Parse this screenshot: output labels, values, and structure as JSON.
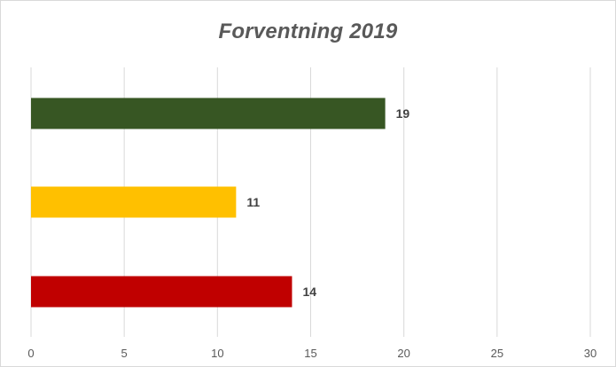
{
  "chart_data": {
    "type": "bar",
    "orientation": "horizontal",
    "title": "Forventning 2019",
    "xlabel": "",
    "ylabel": "",
    "xlim": [
      0,
      30
    ],
    "x_ticks": [
      0,
      5,
      10,
      15,
      20,
      25,
      30
    ],
    "grid": true,
    "legend": "none",
    "bars": [
      {
        "value": 19,
        "label": "19",
        "color": "#375623"
      },
      {
        "value": 11,
        "label": "11",
        "color": "#FFC000"
      },
      {
        "value": 14,
        "label": "14",
        "color": "#C00000"
      }
    ]
  }
}
